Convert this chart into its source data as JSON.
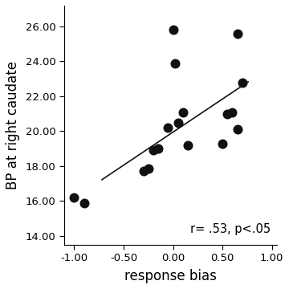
{
  "x_data": [
    -1.0,
    -0.9,
    -0.3,
    -0.25,
    -0.2,
    -0.15,
    -0.05,
    0.0,
    0.02,
    0.05,
    0.1,
    0.15,
    0.5,
    0.55,
    0.6,
    0.65,
    0.65,
    0.7
  ],
  "y_data": [
    16.2,
    15.9,
    17.7,
    17.85,
    18.9,
    19.0,
    20.2,
    25.8,
    23.9,
    20.5,
    21.1,
    19.2,
    19.3,
    21.0,
    21.1,
    20.1,
    25.6,
    22.8
  ],
  "xlabel": "response bias",
  "ylabel": "BP at right caudate",
  "xlim": [
    -1.1,
    1.05
  ],
  "ylim": [
    13.5,
    27.2
  ],
  "xticks": [
    -1.0,
    -0.5,
    0.0,
    0.5,
    1.0
  ],
  "yticks": [
    14.0,
    16.0,
    18.0,
    20.0,
    22.0,
    24.0,
    26.0
  ],
  "annotation": "r= .53, p<.05",
  "dot_color": "#111111",
  "dot_size": 75,
  "line_color": "#111111",
  "line_slope": 3.79,
  "line_intercept": 19.95,
  "line_start_x": -0.72,
  "line_end_x": 0.76,
  "bg_color": "#ffffff",
  "tick_label_fontsize": 9.5,
  "axis_label_fontsize": 12,
  "annotation_fontsize": 10.5,
  "figsize": [
    3.6,
    3.6
  ]
}
